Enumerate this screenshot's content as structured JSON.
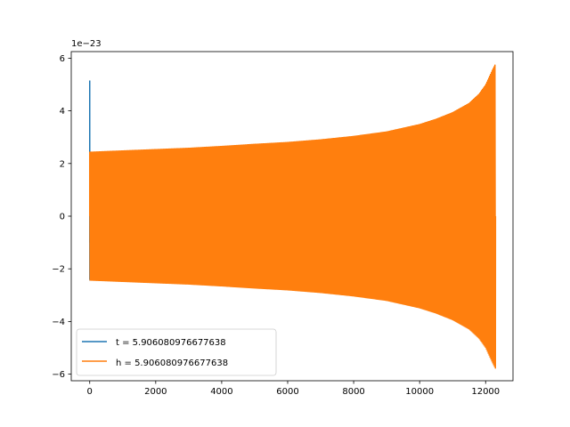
{
  "chart_data": {
    "type": "line",
    "y_offset_label": "1e−23",
    "y_scale_factor": 1e-23,
    "xlim": [
      -560,
      12830
    ],
    "ylim": [
      -6.25e-23,
      6.25e-23
    ],
    "x_ticks": [
      0,
      2000,
      4000,
      6000,
      8000,
      10000,
      12000
    ],
    "x_tick_labels": [
      "0",
      "2000",
      "4000",
      "6000",
      "8000",
      "10000",
      "12000"
    ],
    "y_ticks": [
      -6e-23,
      -4e-23,
      -2e-23,
      0,
      2e-23,
      4e-23,
      6e-23
    ],
    "y_tick_labels": [
      "−6",
      "−4",
      "−2",
      "0",
      "2",
      "4",
      "6"
    ],
    "grid": false,
    "legend_position": "lower-left",
    "series": [
      {
        "name": "t = 5.906080976677638",
        "color": "#1f77b4",
        "x": [
          0,
          0,
          2,
          4,
          6,
          8,
          10
        ],
        "y": [
          -1e-23,
          5.15e-23,
          -2.4e-23,
          2.4e-23,
          -2.45e-23,
          2.45e-23,
          0
        ]
      },
      {
        "name": "h = 5.906080976677638",
        "color": "#ff7f0e",
        "x": [
          0,
          1000,
          2000,
          3000,
          4000,
          5000,
          6000,
          7000,
          8000,
          9000,
          10000,
          10500,
          11000,
          11500,
          11800,
          12000,
          12200,
          12300
        ],
        "y_envelope": [
          2.45e-23,
          2.5e-23,
          2.55e-23,
          2.6e-23,
          2.67e-23,
          2.75e-23,
          2.82e-23,
          2.92e-23,
          3.05e-23,
          3.22e-23,
          3.5e-23,
          3.7e-23,
          3.95e-23,
          4.3e-23,
          4.65e-23,
          5e-23,
          5.55e-23,
          5.8e-23
        ]
      }
    ]
  }
}
